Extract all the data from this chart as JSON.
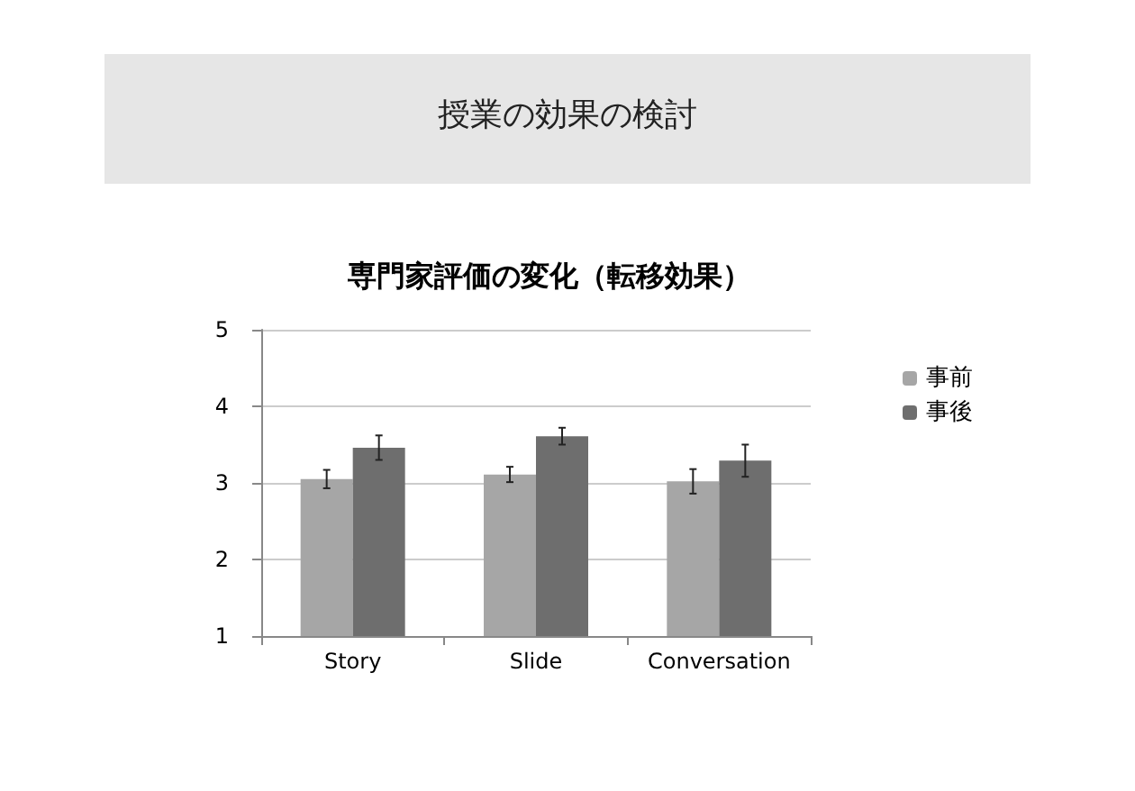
{
  "chart_data": {
    "type": "bar",
    "title": "専門家評価の変化（転移効果）",
    "annotations": [
      "授業の効果の検討"
    ],
    "categories": [
      "Story",
      "Slide",
      "Conversation"
    ],
    "series": [
      {
        "name": "事前",
        "color": "#a6a6a6",
        "values": [
          3.05,
          3.11,
          3.02
        ],
        "errors": [
          0.12,
          0.1,
          0.16
        ]
      },
      {
        "name": "事後",
        "color": "#6e6e6e",
        "values": [
          3.46,
          3.61,
          3.29
        ],
        "errors": [
          0.16,
          0.11,
          0.21
        ]
      }
    ],
    "ylim": [
      1,
      5
    ],
    "yticks": [
      1,
      2,
      3,
      4,
      5
    ],
    "grid": "y",
    "legend": "right"
  }
}
